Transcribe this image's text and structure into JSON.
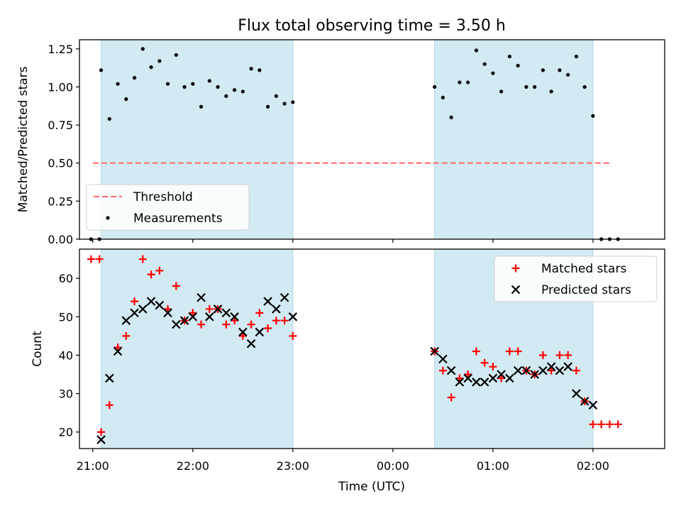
{
  "title": "Flux total observing time = 3.50 h",
  "xlabel": "Time (UTC)",
  "x_ticks": [
    "21:00",
    "22:00",
    "23:00",
    "00:00",
    "01:00",
    "02:00"
  ],
  "colors": {
    "shade": "#add8e6",
    "threshold": "#ff6666",
    "matched": "#ff0000",
    "predicted": "#000000",
    "measurements": "#000000"
  },
  "chart_data": [
    {
      "type": "scatter",
      "ylabel": "Matched/Predicted stars",
      "ylim": [
        0,
        1.31
      ],
      "yticks": [
        "0.00",
        "0.25",
        "0.50",
        "0.75",
        "1.00",
        "1.25"
      ],
      "xlim": [
        "20:52",
        "02:43"
      ],
      "shaded_intervals": [
        [
          "21:05",
          "23:00"
        ],
        [
          "00:25",
          "02:00"
        ]
      ],
      "legend": {
        "position": "lower-left",
        "entries": [
          {
            "label": "Threshold",
            "style": "dashed-line"
          },
          {
            "label": "Measurements",
            "style": "dot"
          }
        ]
      },
      "threshold": {
        "name": "Threshold",
        "value": 0.5,
        "x_range": [
          "21:00",
          "02:10"
        ]
      },
      "series": [
        {
          "name": "Measurements",
          "style": "dot",
          "points": [
            {
              "x": "20:59",
              "y": 0.0
            },
            {
              "x": "21:04",
              "y": 0.0
            },
            {
              "x": "21:05",
              "y": 1.11
            },
            {
              "x": "21:10",
              "y": 0.79
            },
            {
              "x": "21:15",
              "y": 1.02
            },
            {
              "x": "21:20",
              "y": 0.92
            },
            {
              "x": "21:25",
              "y": 1.06
            },
            {
              "x": "21:30",
              "y": 1.25
            },
            {
              "x": "21:35",
              "y": 1.13
            },
            {
              "x": "21:40",
              "y": 1.17
            },
            {
              "x": "21:45",
              "y": 1.02
            },
            {
              "x": "21:50",
              "y": 1.21
            },
            {
              "x": "21:55",
              "y": 1.0
            },
            {
              "x": "22:00",
              "y": 1.02
            },
            {
              "x": "22:05",
              "y": 0.87
            },
            {
              "x": "22:10",
              "y": 1.04
            },
            {
              "x": "22:15",
              "y": 1.0
            },
            {
              "x": "22:20",
              "y": 0.94
            },
            {
              "x": "22:25",
              "y": 0.98
            },
            {
              "x": "22:30",
              "y": 0.97
            },
            {
              "x": "22:35",
              "y": 1.12
            },
            {
              "x": "22:40",
              "y": 1.11
            },
            {
              "x": "22:45",
              "y": 0.87
            },
            {
              "x": "22:50",
              "y": 0.94
            },
            {
              "x": "22:55",
              "y": 0.89
            },
            {
              "x": "23:00",
              "y": 0.9
            },
            {
              "x": "00:25",
              "y": 1.0
            },
            {
              "x": "00:30",
              "y": 0.93
            },
            {
              "x": "00:35",
              "y": 0.8
            },
            {
              "x": "00:40",
              "y": 1.03
            },
            {
              "x": "00:45",
              "y": 1.03
            },
            {
              "x": "00:50",
              "y": 1.24
            },
            {
              "x": "00:55",
              "y": 1.15
            },
            {
              "x": "01:00",
              "y": 1.09
            },
            {
              "x": "01:05",
              "y": 0.97
            },
            {
              "x": "01:10",
              "y": 1.2
            },
            {
              "x": "01:15",
              "y": 1.14
            },
            {
              "x": "01:20",
              "y": 1.0
            },
            {
              "x": "01:25",
              "y": 1.0
            },
            {
              "x": "01:30",
              "y": 1.11
            },
            {
              "x": "01:35",
              "y": 0.97
            },
            {
              "x": "01:40",
              "y": 1.11
            },
            {
              "x": "01:45",
              "y": 1.08
            },
            {
              "x": "01:50",
              "y": 1.2
            },
            {
              "x": "01:55",
              "y": 1.0
            },
            {
              "x": "02:00",
              "y": 0.81
            },
            {
              "x": "02:05",
              "y": 0.0
            },
            {
              "x": "02:10",
              "y": 0.0
            },
            {
              "x": "02:15",
              "y": 0.0
            }
          ]
        }
      ]
    },
    {
      "type": "scatter",
      "ylabel": "Count",
      "ylim": [
        15.7,
        67.6
      ],
      "yticks": [
        "20",
        "30",
        "40",
        "50",
        "60"
      ],
      "xlim": [
        "20:52",
        "02:43"
      ],
      "shaded_intervals": [
        [
          "21:05",
          "23:00"
        ],
        [
          "00:25",
          "02:00"
        ]
      ],
      "legend": {
        "position": "upper-right",
        "entries": [
          {
            "label": "Matched stars",
            "style": "plus"
          },
          {
            "label": "Predicted stars",
            "style": "cross"
          }
        ]
      },
      "series": [
        {
          "name": "Matched stars",
          "style": "plus",
          "points": [
            {
              "x": "20:59",
              "y": 65
            },
            {
              "x": "21:04",
              "y": 65
            },
            {
              "x": "21:05",
              "y": 20
            },
            {
              "x": "21:10",
              "y": 27
            },
            {
              "x": "21:15",
              "y": 42
            },
            {
              "x": "21:20",
              "y": 45
            },
            {
              "x": "21:25",
              "y": 54
            },
            {
              "x": "21:30",
              "y": 65
            },
            {
              "x": "21:35",
              "y": 61
            },
            {
              "x": "21:40",
              "y": 62
            },
            {
              "x": "21:45",
              "y": 52
            },
            {
              "x": "21:50",
              "y": 58
            },
            {
              "x": "21:55",
              "y": 49
            },
            {
              "x": "22:00",
              "y": 51
            },
            {
              "x": "22:05",
              "y": 48
            },
            {
              "x": "22:10",
              "y": 52
            },
            {
              "x": "22:15",
              "y": 52
            },
            {
              "x": "22:20",
              "y": 48
            },
            {
              "x": "22:25",
              "y": 49
            },
            {
              "x": "22:30",
              "y": 45
            },
            {
              "x": "22:35",
              "y": 48
            },
            {
              "x": "22:40",
              "y": 51
            },
            {
              "x": "22:45",
              "y": 47
            },
            {
              "x": "22:50",
              "y": 49
            },
            {
              "x": "22:55",
              "y": 49
            },
            {
              "x": "23:00",
              "y": 45
            },
            {
              "x": "00:25",
              "y": 41
            },
            {
              "x": "00:30",
              "y": 36
            },
            {
              "x": "00:35",
              "y": 29
            },
            {
              "x": "00:40",
              "y": 34
            },
            {
              "x": "00:45",
              "y": 35
            },
            {
              "x": "00:50",
              "y": 41
            },
            {
              "x": "00:55",
              "y": 38
            },
            {
              "x": "01:00",
              "y": 37
            },
            {
              "x": "01:05",
              "y": 34
            },
            {
              "x": "01:10",
              "y": 41
            },
            {
              "x": "01:15",
              "y": 41
            },
            {
              "x": "01:20",
              "y": 36
            },
            {
              "x": "01:25",
              "y": 35
            },
            {
              "x": "01:30",
              "y": 40
            },
            {
              "x": "01:35",
              "y": 36
            },
            {
              "x": "01:40",
              "y": 40
            },
            {
              "x": "01:45",
              "y": 40
            },
            {
              "x": "01:50",
              "y": 36
            },
            {
              "x": "01:55",
              "y": 28
            },
            {
              "x": "02:00",
              "y": 22
            },
            {
              "x": "02:05",
              "y": 22
            },
            {
              "x": "02:10",
              "y": 22
            },
            {
              "x": "02:15",
              "y": 22
            }
          ]
        },
        {
          "name": "Predicted stars",
          "style": "cross",
          "points": [
            {
              "x": "21:05",
              "y": 18
            },
            {
              "x": "21:10",
              "y": 34
            },
            {
              "x": "21:15",
              "y": 41
            },
            {
              "x": "21:20",
              "y": 49
            },
            {
              "x": "21:25",
              "y": 51
            },
            {
              "x": "21:30",
              "y": 52
            },
            {
              "x": "21:35",
              "y": 54
            },
            {
              "x": "21:40",
              "y": 53
            },
            {
              "x": "21:45",
              "y": 51
            },
            {
              "x": "21:50",
              "y": 48
            },
            {
              "x": "21:55",
              "y": 49
            },
            {
              "x": "22:00",
              "y": 50
            },
            {
              "x": "22:05",
              "y": 55
            },
            {
              "x": "22:10",
              "y": 50
            },
            {
              "x": "22:15",
              "y": 52
            },
            {
              "x": "22:20",
              "y": 51
            },
            {
              "x": "22:25",
              "y": 50
            },
            {
              "x": "22:30",
              "y": 46
            },
            {
              "x": "22:35",
              "y": 43
            },
            {
              "x": "22:40",
              "y": 46
            },
            {
              "x": "22:45",
              "y": 54
            },
            {
              "x": "22:50",
              "y": 52
            },
            {
              "x": "22:55",
              "y": 55
            },
            {
              "x": "23:00",
              "y": 50
            },
            {
              "x": "00:25",
              "y": 41
            },
            {
              "x": "00:30",
              "y": 39
            },
            {
              "x": "00:35",
              "y": 36
            },
            {
              "x": "00:40",
              "y": 33
            },
            {
              "x": "00:45",
              "y": 34
            },
            {
              "x": "00:50",
              "y": 33
            },
            {
              "x": "00:55",
              "y": 33
            },
            {
              "x": "01:00",
              "y": 34
            },
            {
              "x": "01:05",
              "y": 35
            },
            {
              "x": "01:10",
              "y": 34
            },
            {
              "x": "01:15",
              "y": 36
            },
            {
              "x": "01:20",
              "y": 36
            },
            {
              "x": "01:25",
              "y": 35
            },
            {
              "x": "01:30",
              "y": 36
            },
            {
              "x": "01:35",
              "y": 37
            },
            {
              "x": "01:40",
              "y": 36
            },
            {
              "x": "01:45",
              "y": 37
            },
            {
              "x": "01:50",
              "y": 30
            },
            {
              "x": "01:55",
              "y": 28
            },
            {
              "x": "02:00",
              "y": 27
            }
          ]
        }
      ]
    }
  ]
}
